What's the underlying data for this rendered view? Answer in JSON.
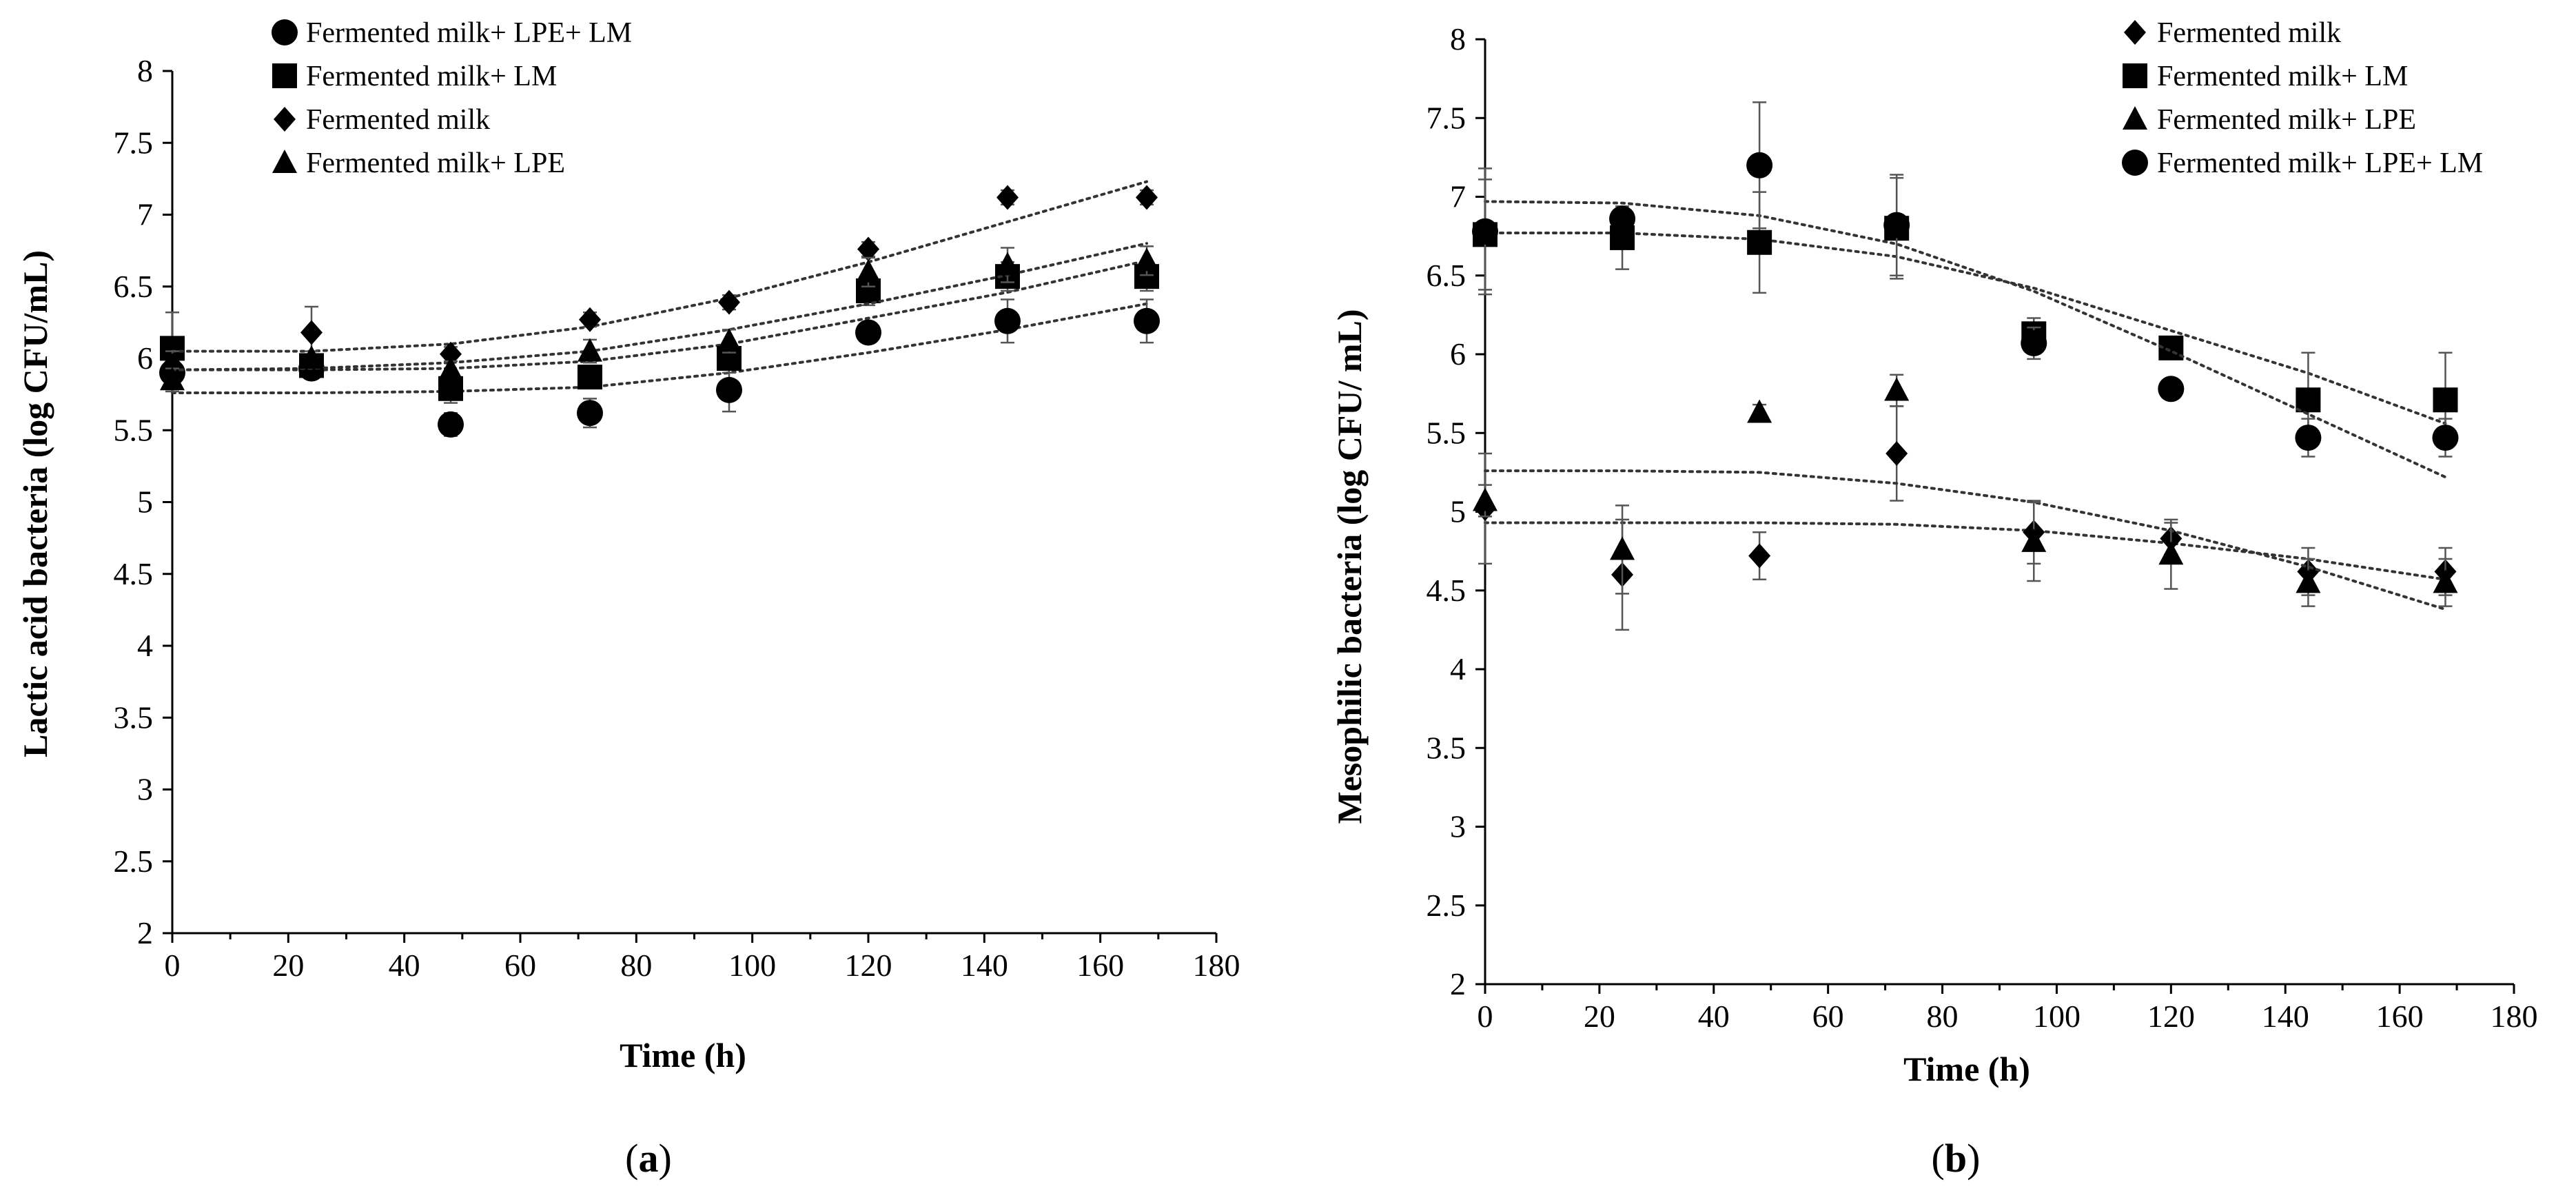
{
  "panels": [
    {
      "caption_prefix": "(",
      "caption_letter": "a",
      "caption_suffix": ")",
      "chart_data": {
        "type": "scatter",
        "title": "",
        "xlabel": "Time (h)",
        "ylabel": "Lactic acid bacteria  (log CFU/mL)",
        "xlim": [
          0,
          180
        ],
        "ylim": [
          2,
          8
        ],
        "xticks": [
          0,
          20,
          40,
          60,
          80,
          100,
          120,
          140,
          160,
          180
        ],
        "yticks": [
          2,
          2.5,
          3,
          3.5,
          4,
          4.5,
          5,
          5.5,
          6,
          6.5,
          7,
          7.5,
          8
        ],
        "ytick_labels": [
          "2",
          "2.5",
          "3",
          "3.5",
          "4",
          "4.5",
          "5",
          "5.5",
          "6",
          "6.5",
          "7",
          "7.5",
          "8"
        ],
        "xtick_labels": [
          "0",
          "20",
          "40",
          "60",
          "80",
          "100",
          "120",
          "140",
          "160",
          "180"
        ],
        "x": [
          0,
          24,
          48,
          72,
          96,
          120,
          144,
          168
        ],
        "legend_position": "top-center",
        "grid": false,
        "series": [
          {
            "name": "Fermented milk+ LPE+ LM",
            "marker": "circle",
            "values": [
              5.9,
              5.93,
              5.54,
              5.62,
              5.78,
              6.18,
              6.26,
              6.26
            ],
            "errors": [
              0.08,
              0.06,
              0.08,
              0.1,
              0.15,
              0.05,
              0.15,
              0.15
            ],
            "trend": [
              5.76,
              5.76,
              5.77,
              5.8,
              5.9,
              6.04,
              6.2,
              6.38
            ]
          },
          {
            "name": "Fermented milk+ LM",
            "marker": "square",
            "values": [
              6.07,
              5.95,
              5.79,
              5.87,
              6.0,
              6.47,
              6.57,
              6.57
            ],
            "errors": [
              0.25,
              0.08,
              0.1,
              0.08,
              0.1,
              0.1,
              0.1,
              0.1
            ],
            "trend": [
              5.92,
              5.92,
              5.93,
              5.98,
              6.1,
              6.28,
              6.46,
              6.68
            ]
          },
          {
            "name": "Fermented  milk",
            "marker": "diamond",
            "values": [
              5.95,
              6.18,
              6.03,
              6.27,
              6.39,
              6.76,
              7.12,
              7.12
            ],
            "errors": [
              0.1,
              0.18,
              0.05,
              0.05,
              0.05,
              0.05,
              0.05,
              0.05
            ],
            "trend": [
              6.05,
              6.05,
              6.1,
              6.22,
              6.42,
              6.67,
              6.95,
              7.23
            ]
          },
          {
            "name": "Fermented milk+ LPE",
            "marker": "triangle",
            "values": [
              5.85,
              6.0,
              5.92,
              6.05,
              6.12,
              6.6,
              6.65,
              6.68
            ],
            "errors": [
              0.08,
              0.05,
              0.06,
              0.08,
              0.08,
              0.1,
              0.12,
              0.1
            ],
            "trend": [
              5.92,
              5.93,
              5.97,
              6.05,
              6.2,
              6.38,
              6.58,
              6.8
            ]
          }
        ]
      }
    },
    {
      "caption_prefix": "(",
      "caption_letter": "b",
      "caption_suffix": ")",
      "chart_data": {
        "type": "scatter",
        "title": "",
        "xlabel": "Time (h)",
        "ylabel": "Mesophilic bacteria  (log CFU/ mL)",
        "xlim": [
          0,
          180
        ],
        "ylim": [
          2,
          8
        ],
        "xticks": [
          0,
          20,
          40,
          60,
          80,
          100,
          120,
          140,
          160,
          180
        ],
        "yticks": [
          2,
          2.5,
          3,
          3.5,
          4,
          4.5,
          5,
          5.5,
          6,
          6.5,
          7,
          7.5,
          8
        ],
        "ytick_labels": [
          "2",
          "2.5",
          "3",
          "3.5",
          "4",
          "4.5",
          "5",
          "5.5",
          "6",
          "6.5",
          "7",
          "7.5",
          "8"
        ],
        "xtick_labels": [
          "0",
          "20",
          "40",
          "60",
          "80",
          "100",
          "120",
          "140",
          "160",
          "180"
        ],
        "x": [
          0,
          24,
          48,
          72,
          96,
          120,
          144,
          168
        ],
        "legend_position": "top-right",
        "grid": false,
        "series": [
          {
            "name": "Fermented milk",
            "marker": "diamond",
            "values": [
              5.02,
              4.6,
              4.72,
              5.37,
              4.87,
              4.83,
              4.62,
              4.62
            ],
            "errors": [
              0.35,
              0.35,
              0.15,
              0.3,
              0.2,
              0.1,
              0.15,
              0.15
            ],
            "trend": [
              4.93,
              4.93,
              4.93,
              4.92,
              4.88,
              4.8,
              4.7,
              4.57
            ]
          },
          {
            "name": "Fermented milk+ LM",
            "marker": "square",
            "values": [
              6.76,
              6.74,
              6.71,
              6.8,
              6.13,
              6.04,
              5.71,
              5.71
            ],
            "errors": [
              0.35,
              0.2,
              0.32,
              0.32,
              0.1,
              0.05,
              0.3,
              0.3
            ],
            "trend": [
              6.77,
              6.77,
              6.73,
              6.62,
              6.42,
              6.15,
              5.88,
              5.56
            ]
          },
          {
            "name": "Fermented milk+ LPE",
            "marker": "triangle",
            "values": [
              5.07,
              4.76,
              5.63,
              5.77,
              4.81,
              4.73,
              4.55,
              4.55
            ],
            "errors": [
              0.1,
              0.28,
              0.05,
              0.1,
              0.25,
              0.22,
              0.15,
              0.15
            ],
            "trend": [
              5.26,
              5.26,
              5.25,
              5.18,
              5.06,
              4.88,
              4.65,
              4.38
            ]
          },
          {
            "name": "Fermented milk+ LPE+ LM",
            "marker": "circle",
            "values": [
              6.78,
              6.86,
              7.2,
              6.82,
              6.07,
              5.78,
              5.47,
              5.47
            ],
            "errors": [
              0.4,
              0.05,
              0.4,
              0.32,
              0.1,
              0.05,
              0.12,
              0.12
            ],
            "trend": [
              6.97,
              6.96,
              6.88,
              6.7,
              6.4,
              6.02,
              5.62,
              5.22
            ]
          }
        ]
      }
    }
  ]
}
